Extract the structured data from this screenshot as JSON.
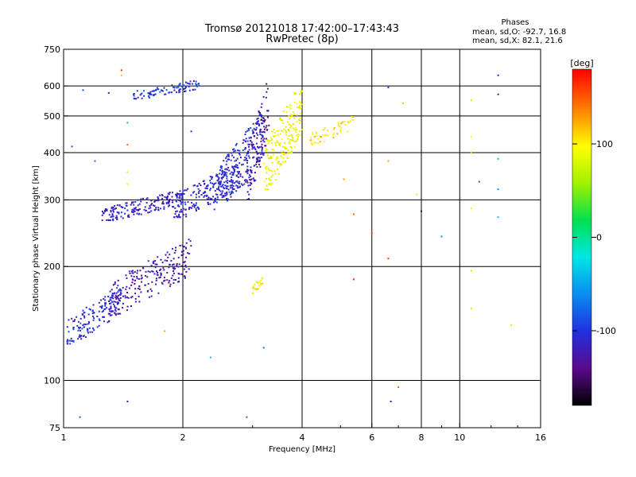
{
  "header": {
    "title_line1": "Tromsø 20121018 17:42:00–17:43:43",
    "title_line2": "RwPretec (8p)",
    "phases_title": "Phases",
    "phases_o": "mean, sd,O: -92.7, 16.8",
    "phases_x": "mean, sd,X: 82.1, 21.6"
  },
  "colorbar": {
    "label": "[deg]",
    "ticks": [
      {
        "value": 100,
        "label": "100"
      },
      {
        "value": 0,
        "label": "0"
      },
      {
        "value": -100,
        "label": "-100"
      }
    ],
    "range": [
      -180,
      180
    ],
    "colors": [
      "#000000",
      "#5a0a8c",
      "#2030e0",
      "#0a8cf0",
      "#00e6e6",
      "#00e050",
      "#a0f000",
      "#ffff00",
      "#ff8000",
      "#ff0000"
    ]
  },
  "chart_data": {
    "type": "scatter",
    "xlabel": "Frequency [MHz]",
    "ylabel": "Stationary phase Virtual Height [km]",
    "x_scale": "log",
    "y_scale": "log",
    "xlim": [
      1,
      16
    ],
    "ylim": [
      75,
      750
    ],
    "x_ticks": [
      1,
      2,
      4,
      6,
      8,
      10,
      16
    ],
    "y_ticks": [
      75,
      100,
      200,
      300,
      400,
      500,
      600,
      750
    ],
    "grid_x": [
      2,
      4,
      6,
      8,
      10
    ],
    "grid_y": [
      100,
      200,
      300,
      400,
      500,
      600
    ],
    "color_by": "phase (deg)",
    "clusters": [
      {
        "x0": 1.02,
        "x1": 1.4,
        "y0": 125,
        "y1": 180,
        "phase": -105,
        "n": 160
      },
      {
        "x0": 1.3,
        "x1": 2.1,
        "y0": 150,
        "y1": 240,
        "phase": -125,
        "n": 220
      },
      {
        "x0": 1.25,
        "x1": 2.0,
        "y0": 265,
        "y1": 320,
        "phase": -115,
        "n": 180
      },
      {
        "x0": 1.9,
        "x1": 2.8,
        "y0": 270,
        "y1": 380,
        "phase": -110,
        "n": 220
      },
      {
        "x0": 2.4,
        "x1": 3.2,
        "y0": 280,
        "y1": 520,
        "phase": -105,
        "n": 200
      },
      {
        "x0": 2.9,
        "x1": 3.3,
        "y0": 300,
        "y1": 640,
        "phase": -130,
        "n": 120
      },
      {
        "x0": 3.2,
        "x1": 4.0,
        "y0": 320,
        "y1": 620,
        "phase": 95,
        "n": 200
      },
      {
        "x0": 1.5,
        "x1": 2.2,
        "y0": 555,
        "y1": 625,
        "phase": -100,
        "n": 90
      },
      {
        "x0": 4.2,
        "x1": 5.4,
        "y0": 420,
        "y1": 500,
        "phase": 110,
        "n": 50
      },
      {
        "x0": 3.0,
        "x1": 3.2,
        "y0": 170,
        "y1": 190,
        "phase": 105,
        "n": 20
      }
    ],
    "scattered_points": [
      {
        "x": 1.1,
        "y": 80,
        "phase": -80
      },
      {
        "x": 1.45,
        "y": 88,
        "phase": -120
      },
      {
        "x": 2.9,
        "y": 80,
        "phase": -80
      },
      {
        "x": 3.2,
        "y": 122,
        "phase": -70
      },
      {
        "x": 2.35,
        "y": 115,
        "phase": -40
      },
      {
        "x": 6.7,
        "y": 88,
        "phase": -110
      },
      {
        "x": 7.0,
        "y": 96,
        "phase": 150
      },
      {
        "x": 1.4,
        "y": 660,
        "phase": 170
      },
      {
        "x": 1.4,
        "y": 640,
        "phase": 120
      },
      {
        "x": 6.6,
        "y": 595,
        "phase": -100
      },
      {
        "x": 7.2,
        "y": 540,
        "phase": 120
      },
      {
        "x": 6.6,
        "y": 380,
        "phase": 130
      },
      {
        "x": 6.6,
        "y": 210,
        "phase": 160
      },
      {
        "x": 5.4,
        "y": 275,
        "phase": 150
      },
      {
        "x": 5.4,
        "y": 185,
        "phase": 170
      },
      {
        "x": 6.0,
        "y": 245,
        "phase": 160
      },
      {
        "x": 7.8,
        "y": 310,
        "phase": 80
      },
      {
        "x": 8.0,
        "y": 280,
        "phase": -150
      },
      {
        "x": 9.0,
        "y": 240,
        "phase": -60
      },
      {
        "x": 10.7,
        "y": 550,
        "phase": 110
      },
      {
        "x": 10.7,
        "y": 440,
        "phase": 100
      },
      {
        "x": 10.7,
        "y": 400,
        "phase": 120
      },
      {
        "x": 11.2,
        "y": 335,
        "phase": -80
      },
      {
        "x": 10.7,
        "y": 285,
        "phase": 100
      },
      {
        "x": 10.7,
        "y": 195,
        "phase": 110
      },
      {
        "x": 10.7,
        "y": 155,
        "phase": 110
      },
      {
        "x": 12.5,
        "y": 640,
        "phase": -110
      },
      {
        "x": 12.5,
        "y": 570,
        "phase": -130
      },
      {
        "x": 12.5,
        "y": 385,
        "phase": -40
      },
      {
        "x": 12.5,
        "y": 320,
        "phase": -60
      },
      {
        "x": 12.5,
        "y": 270,
        "phase": -40
      },
      {
        "x": 13.5,
        "y": 140,
        "phase": 110
      },
      {
        "x": 1.12,
        "y": 585,
        "phase": -90
      },
      {
        "x": 1.3,
        "y": 575,
        "phase": -120
      },
      {
        "x": 1.05,
        "y": 415,
        "phase": -80
      },
      {
        "x": 1.2,
        "y": 380,
        "phase": -70
      },
      {
        "x": 1.45,
        "y": 355,
        "phase": 110
      },
      {
        "x": 1.45,
        "y": 330,
        "phase": 90
      },
      {
        "x": 1.45,
        "y": 480,
        "phase": -40
      },
      {
        "x": 1.45,
        "y": 420,
        "phase": 150
      },
      {
        "x": 1.8,
        "y": 135,
        "phase": 130
      },
      {
        "x": 2.1,
        "y": 455,
        "phase": -110
      },
      {
        "x": 5.1,
        "y": 340,
        "phase": 130
      }
    ]
  }
}
